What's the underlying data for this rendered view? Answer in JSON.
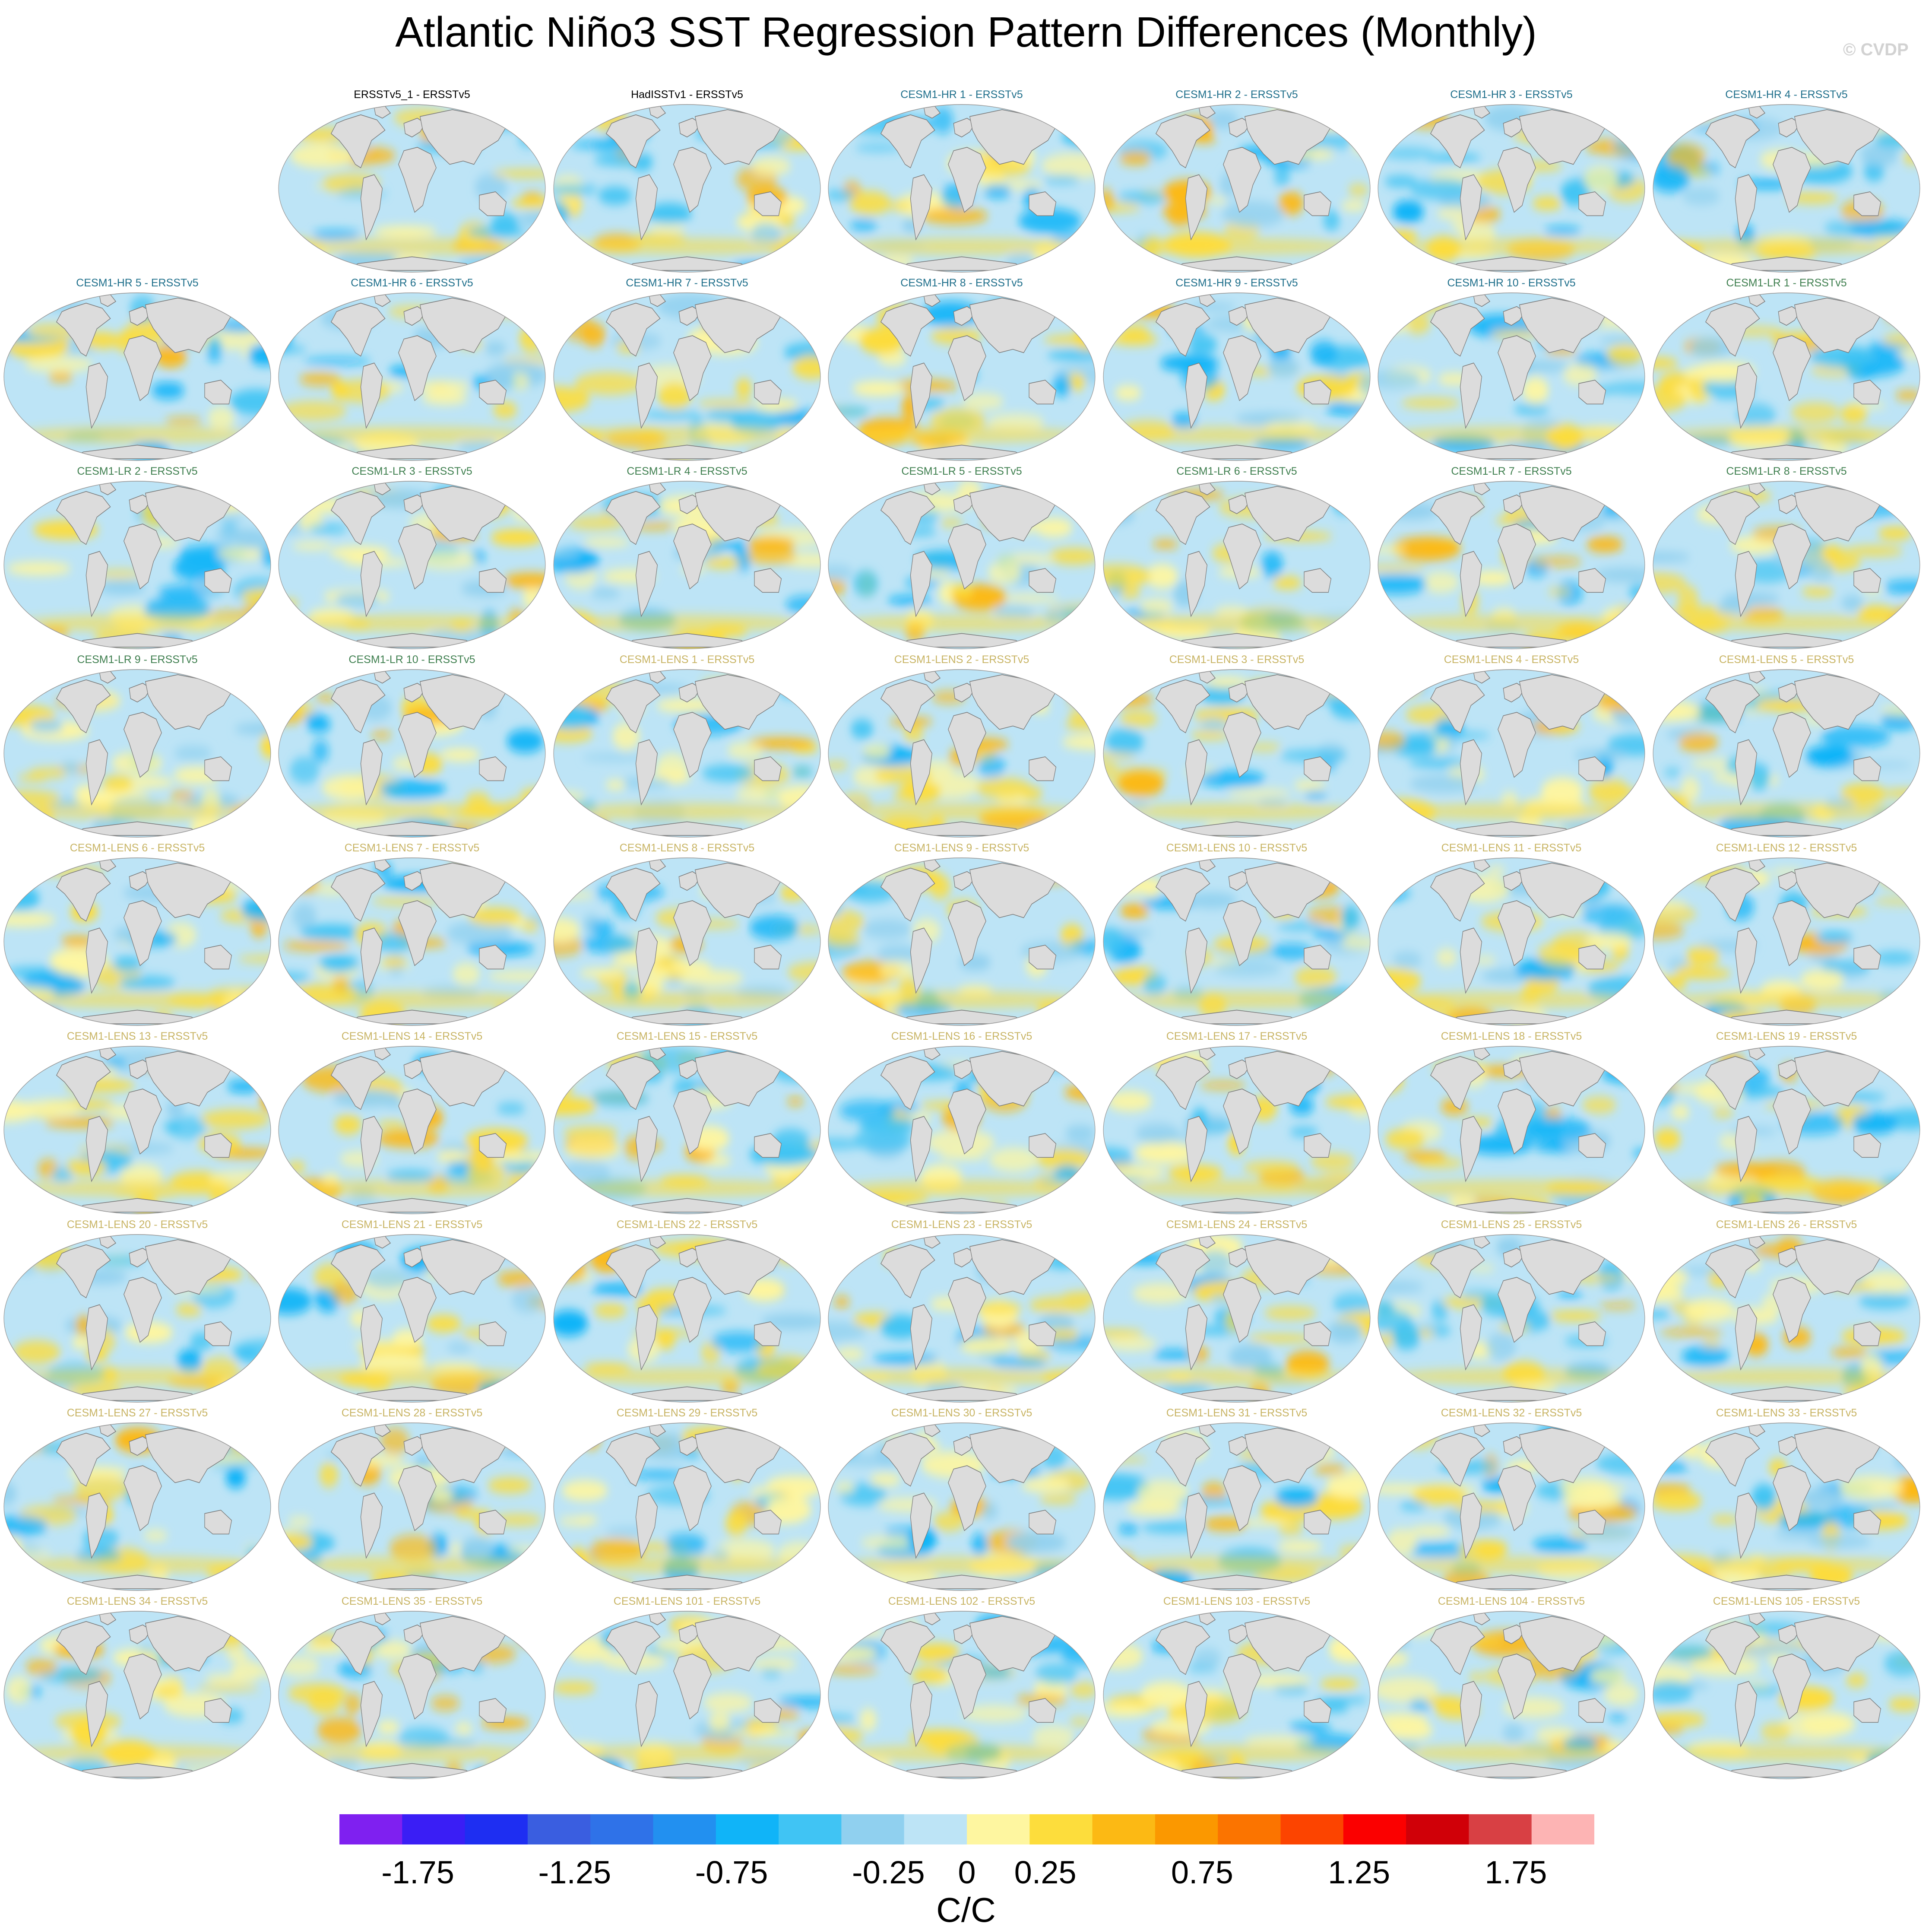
{
  "title": "Atlantic Niño3 SST Regression Pattern Differences (Monthly)",
  "watermark": "© CVDP",
  "panels": [
    {
      "label": "ERSSTv5_1 - ERSSTv5",
      "group": "obs"
    },
    {
      "label": "HadISSTv1 - ERSSTv5",
      "group": "obs"
    },
    {
      "label": "CESM1-HR 1 - ERSSTv5",
      "group": "hr"
    },
    {
      "label": "CESM1-HR 2 - ERSSTv5",
      "group": "hr"
    },
    {
      "label": "CESM1-HR 3 - ERSSTv5",
      "group": "hr"
    },
    {
      "label": "CESM1-HR 4 - ERSSTv5",
      "group": "hr"
    },
    {
      "label": "CESM1-HR 5 - ERSSTv5",
      "group": "hr"
    },
    {
      "label": "CESM1-HR 6 - ERSSTv5",
      "group": "hr"
    },
    {
      "label": "CESM1-HR 7 - ERSSTv5",
      "group": "hr"
    },
    {
      "label": "CESM1-HR 8 - ERSSTv5",
      "group": "hr"
    },
    {
      "label": "CESM1-HR 9 - ERSSTv5",
      "group": "hr"
    },
    {
      "label": "CESM1-HR 10 - ERSSTv5",
      "group": "hr"
    },
    {
      "label": "CESM1-LR 1 - ERSSTv5",
      "group": "lr"
    },
    {
      "label": "CESM1-LR 2 - ERSSTv5",
      "group": "lr"
    },
    {
      "label": "CESM1-LR 3 - ERSSTv5",
      "group": "lr"
    },
    {
      "label": "CESM1-LR 4 - ERSSTv5",
      "group": "lr"
    },
    {
      "label": "CESM1-LR 5 - ERSSTv5",
      "group": "lr"
    },
    {
      "label": "CESM1-LR 6 - ERSSTv5",
      "group": "lr"
    },
    {
      "label": "CESM1-LR 7 - ERSSTv5",
      "group": "lr"
    },
    {
      "label": "CESM1-LR 8 - ERSSTv5",
      "group": "lr"
    },
    {
      "label": "CESM1-LR 9 - ERSSTv5",
      "group": "lr"
    },
    {
      "label": "CESM1-LR 10 - ERSSTv5",
      "group": "lr"
    },
    {
      "label": "CESM1-LENS 1 - ERSSTv5",
      "group": "lens"
    },
    {
      "label": "CESM1-LENS 2 - ERSSTv5",
      "group": "lens"
    },
    {
      "label": "CESM1-LENS 3 - ERSSTv5",
      "group": "lens"
    },
    {
      "label": "CESM1-LENS 4 - ERSSTv5",
      "group": "lens"
    },
    {
      "label": "CESM1-LENS 5 - ERSSTv5",
      "group": "lens"
    },
    {
      "label": "CESM1-LENS 6 - ERSSTv5",
      "group": "lens"
    },
    {
      "label": "CESM1-LENS 7 - ERSSTv5",
      "group": "lens"
    },
    {
      "label": "CESM1-LENS 8 - ERSSTv5",
      "group": "lens"
    },
    {
      "label": "CESM1-LENS 9 - ERSSTv5",
      "group": "lens"
    },
    {
      "label": "CESM1-LENS 10 - ERSSTv5",
      "group": "lens"
    },
    {
      "label": "CESM1-LENS 11 - ERSSTv5",
      "group": "lens"
    },
    {
      "label": "CESM1-LENS 12 - ERSSTv5",
      "group": "lens"
    },
    {
      "label": "CESM1-LENS 13 - ERSSTv5",
      "group": "lens"
    },
    {
      "label": "CESM1-LENS 14 - ERSSTv5",
      "group": "lens"
    },
    {
      "label": "CESM1-LENS 15 - ERSSTv5",
      "group": "lens"
    },
    {
      "label": "CESM1-LENS 16 - ERSSTv5",
      "group": "lens"
    },
    {
      "label": "CESM1-LENS 17 - ERSSTv5",
      "group": "lens"
    },
    {
      "label": "CESM1-LENS 18 - ERSSTv5",
      "group": "lens"
    },
    {
      "label": "CESM1-LENS 19 - ERSSTv5",
      "group": "lens"
    },
    {
      "label": "CESM1-LENS 20 - ERSSTv5",
      "group": "lens"
    },
    {
      "label": "CESM1-LENS 21 - ERSSTv5",
      "group": "lens"
    },
    {
      "label": "CESM1-LENS 22 - ERSSTv5",
      "group": "lens"
    },
    {
      "label": "CESM1-LENS 23 - ERSSTv5",
      "group": "lens"
    },
    {
      "label": "CESM1-LENS 24 - ERSSTv5",
      "group": "lens"
    },
    {
      "label": "CESM1-LENS 25 - ERSSTv5",
      "group": "lens"
    },
    {
      "label": "CESM1-LENS 26 - ERSSTv5",
      "group": "lens"
    },
    {
      "label": "CESM1-LENS 27 - ERSSTv5",
      "group": "lens"
    },
    {
      "label": "CESM1-LENS 28 - ERSSTv5",
      "group": "lens"
    },
    {
      "label": "CESM1-LENS 29 - ERSSTv5",
      "group": "lens"
    },
    {
      "label": "CESM1-LENS 30 - ERSSTv5",
      "group": "lens"
    },
    {
      "label": "CESM1-LENS 31 - ERSSTv5",
      "group": "lens"
    },
    {
      "label": "CESM1-LENS 32 - ERSSTv5",
      "group": "lens"
    },
    {
      "label": "CESM1-LENS 33 - ERSSTv5",
      "group": "lens"
    },
    {
      "label": "CESM1-LENS 34 - ERSSTv5",
      "group": "lens"
    },
    {
      "label": "CESM1-LENS 35 - ERSSTv5",
      "group": "lens"
    },
    {
      "label": "CESM1-LENS 101 - ERSSTv5",
      "group": "lens"
    },
    {
      "label": "CESM1-LENS 102 - ERSSTv5",
      "group": "lens"
    },
    {
      "label": "CESM1-LENS 103 - ERSSTv5",
      "group": "lens"
    },
    {
      "label": "CESM1-LENS 104 - ERSSTv5",
      "group": "lens"
    },
    {
      "label": "CESM1-LENS 105 - ERSSTv5",
      "group": "lens"
    }
  ],
  "group_label_colors": {
    "obs": "#000000",
    "hr": "#1f6f8b",
    "lr": "#3f7f4f",
    "lens": "#c8b464"
  },
  "colorbar": {
    "colors": [
      "#7f20f0",
      "#3a1ef5",
      "#1e2ef2",
      "#3a5ee0",
      "#2f72e8",
      "#2290f0",
      "#10b4f8",
      "#40c4f4",
      "#90d0ef",
      "#bde4f6",
      "#fef6a0",
      "#fddd3c",
      "#fcb914",
      "#fb9800",
      "#fb7400",
      "#fc4400",
      "#fb0000",
      "#d00008",
      "#d84044",
      "#fdb4b4"
    ],
    "levels": [
      -2,
      -1.75,
      -1.5,
      -1.25,
      -1,
      -0.75,
      -0.5,
      -0.25,
      0,
      0.25,
      0.5,
      0.75,
      1,
      1.25,
      1.5,
      1.75,
      2
    ],
    "tick_labels": [
      "-1.75",
      "-1.25",
      "-0.75",
      "-0.25",
      "0",
      "0.25",
      "0.75",
      "1.25",
      "1.75"
    ],
    "units": "C/C"
  },
  "land_color": "#dcdcdc",
  "coast_color": "#7a7a7a"
}
